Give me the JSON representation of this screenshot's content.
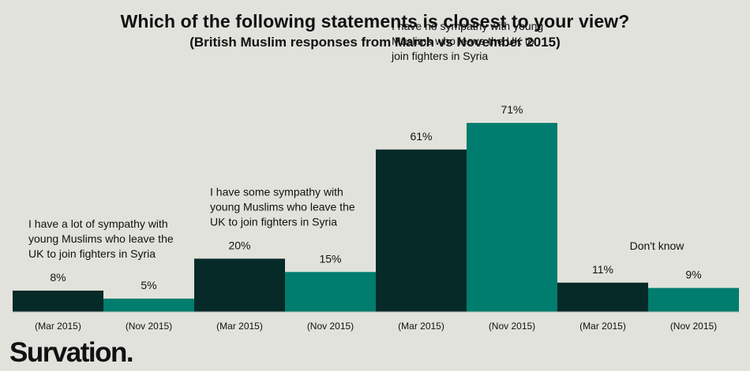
{
  "chart_data": {
    "type": "bar",
    "title": "Which of the following statements is closest to your view?",
    "subtitle": "(British Muslim responses from March vs November 2015)",
    "groups": [
      {
        "label": "I have a lot of sympathy with young Muslims who leave the UK to join fighters in Syria",
        "label_lines": [
          "I have a lot of sympathy with",
          "young Muslims who leave the",
          "UK to join fighters in Syria"
        ],
        "bars": [
          {
            "period": "(Mar 2015)",
            "value": 8,
            "value_label": "8%"
          },
          {
            "period": "(Nov 2015)",
            "value": 5,
            "value_label": "5%"
          }
        ]
      },
      {
        "label": "I have some sympathy with young Muslims who leave the UK to join fighters in Syria",
        "label_lines": [
          "I have some sympathy with",
          "young Muslims who leave the",
          "UK to join fighters in Syria"
        ],
        "bars": [
          {
            "period": "(Mar 2015)",
            "value": 20,
            "value_label": "20%"
          },
          {
            "period": "(Nov 2015)",
            "value": 15,
            "value_label": "15%"
          }
        ]
      },
      {
        "label": "I have no sympathy with young Muslims who leave the UK to join fighters in Syria",
        "label_lines": [
          "I have no sympathy with young",
          "Muslims who leave the UK to",
          "join fighters in Syria"
        ],
        "bars": [
          {
            "period": "(Mar 2015)",
            "value": 61,
            "value_label": "61%"
          },
          {
            "period": "(Nov 2015)",
            "value": 71,
            "value_label": "71%"
          }
        ]
      },
      {
        "label": "Don't know",
        "label_lines": [
          "Don't know"
        ],
        "bars": [
          {
            "period": "(Mar 2015)",
            "value": 11,
            "value_label": "11%"
          },
          {
            "period": "(Nov 2015)",
            "value": 9,
            "value_label": "9%"
          }
        ]
      }
    ],
    "series": [
      {
        "name": "Mar 2015",
        "color": "#062a28"
      },
      {
        "name": "Nov 2015",
        "color": "#007d6e"
      }
    ],
    "ylim": [
      0,
      75
    ],
    "xlabel": "",
    "ylabel": ""
  },
  "brand": {
    "name": "Survation."
  },
  "colors": {
    "background": "#e1e2db",
    "text": "#111111"
  }
}
